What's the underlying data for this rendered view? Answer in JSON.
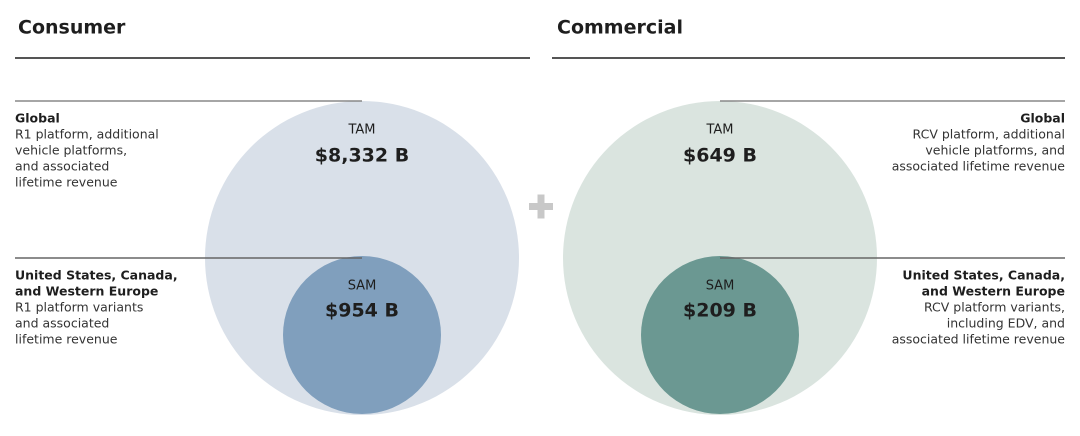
{
  "panels": [
    {
      "title": "Consumer",
      "tam": {
        "label": "TAM",
        "value": "$8,332 B"
      },
      "sam": {
        "label": "SAM",
        "value": "$954 B"
      },
      "global": {
        "heading": [
          "Global"
        ],
        "lines": [
          "R1 platform, additional",
          "vehicle platforms,",
          "and associated",
          "lifetime revenue"
        ]
      },
      "regional": {
        "heading": [
          "United States, Canada,",
          "and Western Europe"
        ],
        "lines": [
          "R1 platform variants",
          "and associated",
          "lifetime revenue"
        ]
      }
    },
    {
      "title": "Commercial",
      "tam": {
        "label": "TAM",
        "value": "$649 B"
      },
      "sam": {
        "label": "SAM",
        "value": "$209 B"
      },
      "global": {
        "heading": [
          "Global"
        ],
        "lines": [
          "RCV platform, additional",
          "vehicle platforms, and",
          "associated lifetime revenue"
        ]
      },
      "regional": {
        "heading": [
          "United States, Canada,",
          "and Western Europe"
        ],
        "lines": [
          "RCV platform variants,",
          "including EDV, and",
          "associated lifetime revenue"
        ]
      }
    }
  ]
}
